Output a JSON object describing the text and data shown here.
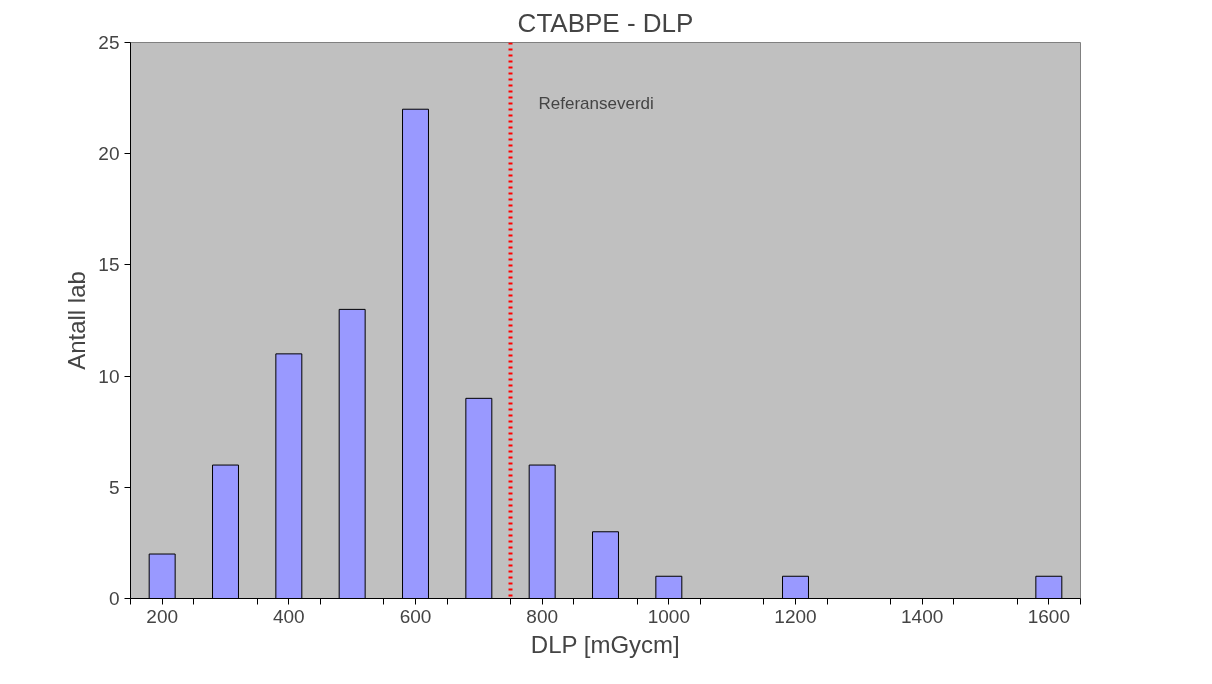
{
  "chart_data": {
    "type": "bar",
    "title": "CTABPE - DLP",
    "xlabel": "DLP [mGycm]",
    "ylabel": "Antall lab",
    "x": [
      200,
      300,
      400,
      500,
      600,
      700,
      800,
      900,
      1000,
      1100,
      1200,
      1300,
      1400,
      1500,
      1600
    ],
    "series": [
      {
        "color": "#9999ff",
        "values": [
          2,
          6,
          11,
          13,
          22,
          9,
          6,
          3,
          1,
          0,
          1,
          0,
          0,
          0,
          1
        ]
      }
    ],
    "xlim": [
      150,
      1650
    ],
    "xticks": [
      {
        "value": 150,
        "label": null
      },
      200,
      {
        "value": 250,
        "label": null
      },
      {
        "value": 350,
        "label": null
      },
      400,
      {
        "value": 450,
        "label": null
      },
      {
        "value": 550,
        "label": null
      },
      600,
      {
        "value": 650,
        "label": null
      },
      {
        "value": 750,
        "label": null
      },
      800,
      {
        "value": 850,
        "label": null
      },
      {
        "value": 950,
        "label": null
      },
      1000,
      {
        "value": 1050,
        "label": null
      },
      {
        "value": 1150,
        "label": null
      },
      1200,
      {
        "value": 1250,
        "label": null
      },
      {
        "value": 1350,
        "label": null
      },
      1400,
      {
        "value": 1450,
        "label": null
      },
      {
        "value": 1550,
        "label": null
      },
      1600,
      {
        "value": 1650,
        "label": null
      }
    ],
    "ylim": [
      0,
      25
    ],
    "yticks": [
      0,
      5,
      10,
      15,
      20,
      25
    ],
    "ref_lines": [
      {
        "axis": "x",
        "value": 750,
        "label": "Referanseverdi",
        "color": "#ff0000",
        "line_style": "dotted"
      }
    ],
    "grid": false
  }
}
